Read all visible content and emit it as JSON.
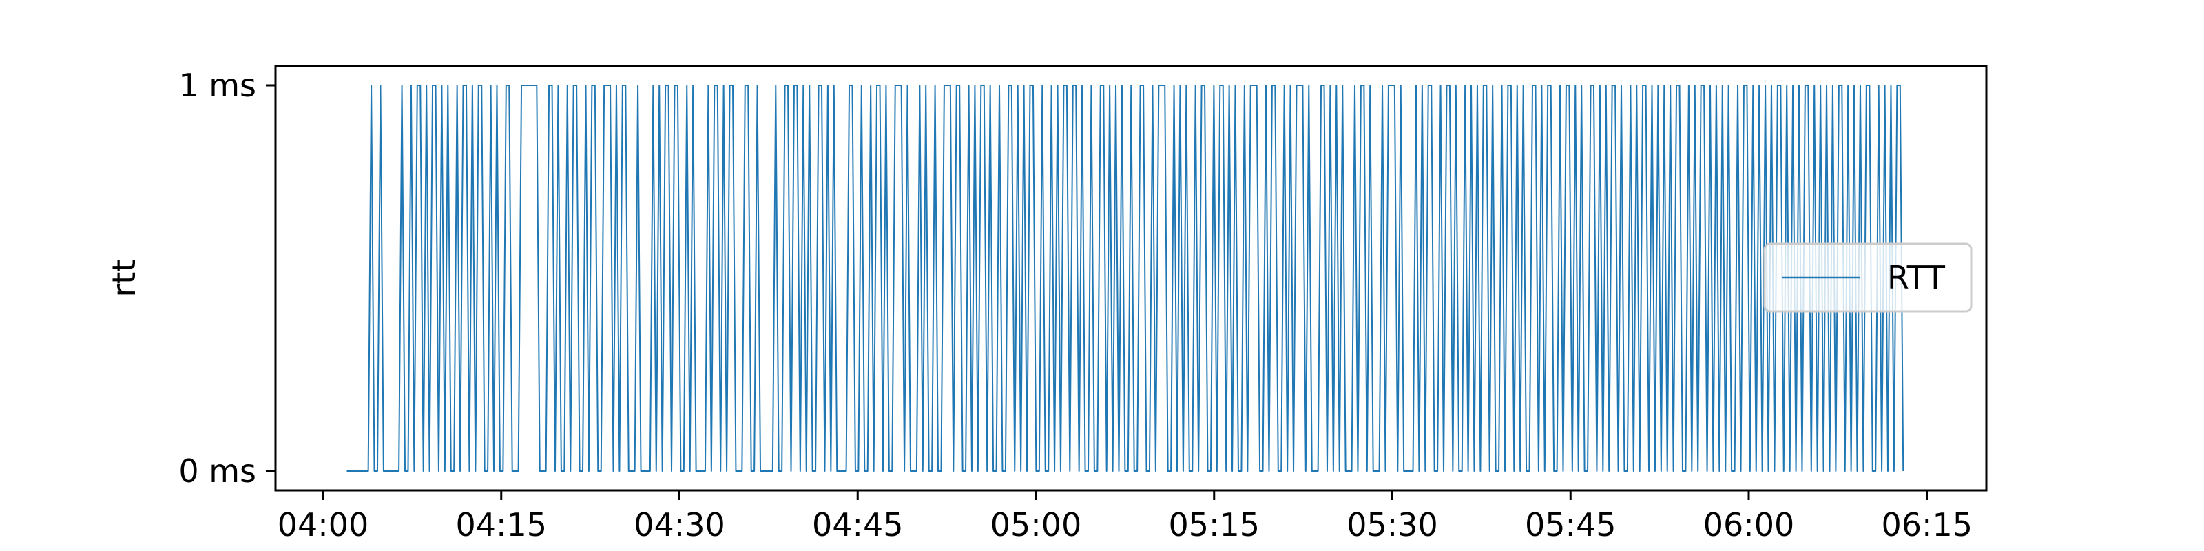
{
  "chart_data": {
    "type": "line",
    "title": "",
    "xlabel": "",
    "ylabel": "rtt",
    "x_start": "04:02",
    "x_end": "06:13",
    "xlim": [
      "03:56",
      "06:20"
    ],
    "ylim": [
      -0.05,
      1.05
    ],
    "x_ticks": [
      "04:00",
      "04:15",
      "04:30",
      "04:45",
      "05:00",
      "05:15",
      "05:30",
      "05:45",
      "06:00",
      "06:15"
    ],
    "y_ticks": [
      {
        "value": 0,
        "label": "0 ms"
      },
      {
        "value": 1,
        "label": "1 ms"
      }
    ],
    "grid": false,
    "legend": {
      "position": "right",
      "entries": [
        "RTT"
      ]
    },
    "series": [
      {
        "name": "RTT",
        "color": "#1f77b4",
        "values": [
          0,
          0,
          0,
          0,
          0,
          0,
          0,
          0,
          1,
          0,
          0,
          1,
          0,
          0,
          0,
          0,
          0,
          0,
          1,
          0,
          0,
          1,
          0,
          1,
          1,
          0,
          1,
          0,
          1,
          1,
          0,
          1,
          0,
          1,
          0,
          0,
          1,
          0,
          1,
          1,
          0,
          1,
          0,
          1,
          1,
          0,
          0,
          1,
          0,
          1,
          0,
          0,
          1,
          1,
          0,
          0,
          0,
          1,
          1,
          1,
          1,
          1,
          1,
          0,
          0,
          0,
          1,
          1,
          0,
          1,
          0,
          0,
          1,
          0,
          1,
          1,
          0,
          0,
          1,
          0,
          1,
          1,
          0,
          0,
          1,
          1,
          1,
          0,
          1,
          0,
          1,
          1,
          0,
          0,
          0,
          1,
          0,
          0,
          0,
          0,
          1,
          0,
          1,
          0,
          1,
          1,
          0,
          1,
          1,
          0,
          0,
          1,
          0,
          1,
          0,
          0,
          0,
          0,
          1,
          0,
          1,
          1,
          0,
          1,
          0,
          1,
          1,
          0,
          0,
          0,
          1,
          1,
          0,
          0,
          1,
          0,
          0,
          0,
          0,
          0,
          1,
          0,
          0,
          1,
          1,
          0,
          1,
          1,
          0,
          1,
          0,
          1,
          0,
          0,
          1,
          1,
          0,
          1,
          0,
          1,
          0,
          0,
          0,
          0,
          1,
          1,
          0,
          0,
          1,
          0,
          0,
          1,
          0,
          1,
          1,
          0,
          1,
          0,
          0,
          1,
          1,
          1,
          0,
          1,
          0,
          0,
          0,
          1,
          0,
          1,
          0,
          0,
          1,
          0,
          0,
          1,
          1,
          1,
          0,
          1,
          1,
          0,
          0,
          1,
          0,
          1,
          0,
          1,
          1,
          0,
          1,
          0,
          0,
          1,
          0,
          0,
          1,
          1,
          0,
          1,
          0,
          1,
          0,
          1,
          1,
          0,
          0,
          1,
          0,
          0,
          1,
          0,
          1,
          0,
          1,
          1,
          0,
          1,
          1,
          0,
          1,
          0,
          0,
          1,
          0,
          0,
          1,
          1,
          0,
          1,
          0,
          1,
          0,
          1,
          0,
          0,
          1,
          0,
          0,
          1,
          1,
          0,
          0,
          1,
          0,
          1,
          1,
          1,
          0,
          0,
          1,
          0,
          1,
          0,
          1,
          0,
          0,
          1,
          0,
          1,
          1,
          0,
          0,
          1,
          0,
          1,
          1,
          0,
          1,
          0,
          1,
          0,
          0,
          1,
          0,
          1,
          1,
          1,
          0,
          0,
          1,
          0,
          1,
          1,
          0,
          0,
          1,
          0,
          1,
          0,
          1,
          1,
          1,
          0,
          1,
          0,
          0,
          0,
          1,
          1,
          0,
          1,
          0,
          1,
          0,
          1,
          0,
          0,
          0,
          1,
          0,
          1,
          1,
          0,
          1,
          0,
          0,
          0,
          1,
          0,
          1,
          1,
          1,
          0,
          1,
          0,
          0,
          0,
          0,
          1,
          0,
          1,
          0,
          1,
          1,
          0,
          0,
          1,
          0,
          1,
          1,
          0,
          1,
          0,
          0,
          1,
          0,
          1,
          0,
          1,
          0,
          1,
          1,
          0,
          1,
          0,
          0,
          1,
          0,
          1,
          1,
          0,
          1,
          0,
          1,
          0,
          0,
          1,
          1,
          0,
          1,
          0,
          1,
          1,
          0,
          0,
          1,
          0,
          1,
          1,
          0,
          1,
          0,
          1,
          0,
          0,
          1,
          1,
          0,
          1,
          0,
          1,
          0,
          1,
          1,
          0,
          1,
          0,
          0,
          1,
          0,
          1,
          0,
          1,
          1,
          0,
          1,
          0,
          1,
          0,
          1,
          0,
          1,
          0,
          1,
          1,
          0,
          0,
          1,
          0,
          1,
          0,
          1,
          1,
          0,
          1,
          0,
          1,
          0,
          1,
          0,
          1,
          0,
          0,
          1,
          0,
          1,
          1,
          0,
          1,
          0,
          1,
          0,
          1,
          0,
          1,
          0,
          1,
          1,
          0,
          1,
          0,
          1,
          0,
          1,
          0,
          1,
          1,
          0,
          1,
          0,
          1,
          0,
          1,
          0,
          1,
          0,
          1,
          1,
          0,
          1,
          0,
          1,
          0,
          1,
          0,
          1,
          1,
          0,
          0,
          1,
          0,
          1,
          0,
          1,
          0,
          1,
          1,
          0
        ]
      }
    ]
  }
}
